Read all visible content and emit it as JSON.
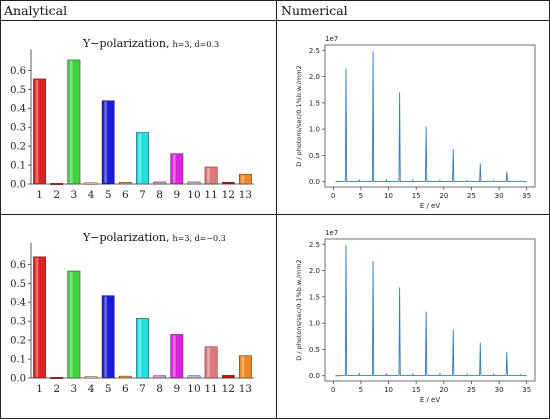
{
  "table": {
    "header_left": "Analytical",
    "header_right": "Numerical"
  },
  "chart_data": [
    {
      "type": "bar",
      "title": "Y−polarization,",
      "subtitle": "h=3, d=0.3",
      "categories": [
        "1",
        "2",
        "3",
        "4",
        "5",
        "6",
        "7",
        "8",
        "9",
        "10",
        "11",
        "12",
        "13"
      ],
      "values": [
        0.555,
        0.004,
        0.655,
        0.006,
        0.44,
        0.009,
        0.272,
        0.011,
        0.16,
        0.011,
        0.09,
        0.009,
        0.052
      ],
      "colors": [
        "#e02020",
        "#e02020",
        "#40d040",
        "#ffd000",
        "#1a1ad8",
        "#e8a040",
        "#20e0e0",
        "#e090e0",
        "#e020e0",
        "#b8b8d8",
        "#e07878",
        "#c01010",
        "#ee8822"
      ],
      "ylim": [
        0,
        0.66
      ],
      "yticks": [
        "0.0",
        "0.1",
        "0.2",
        "0.3",
        "0.4",
        "0.5",
        "0.6"
      ],
      "xlabel": "",
      "ylabel": ""
    },
    {
      "type": "line",
      "scale_label": "1e7",
      "xlabel": "E / eV",
      "ylabel": "D / photons/sec/0.1%b.w./mm2",
      "xlim": [
        -1.5,
        36.5
      ],
      "ylim": [
        -0.1,
        2.6
      ],
      "xticks": [
        "0",
        "5",
        "10",
        "15",
        "20",
        "25",
        "30",
        "35"
      ],
      "yticks": [
        "0.0",
        "0.5",
        "1.0",
        "1.5",
        "2.0",
        "2.5"
      ],
      "peaks": {
        "x": [
          2.3,
          7.2,
          12.0,
          16.8,
          21.7,
          26.6,
          31.4
        ],
        "y": [
          2.15,
          2.48,
          1.7,
          1.05,
          0.62,
          0.35,
          0.19
        ]
      },
      "small_peaks": {
        "x": [
          4.7,
          9.6,
          14.4,
          19.3,
          24.2,
          29.0,
          33.9
        ],
        "y": [
          0.04,
          0.035,
          0.03,
          0.025,
          0.02,
          0.02,
          0.015
        ]
      },
      "color": "#3a7bb8"
    },
    {
      "type": "bar",
      "title": "Y−polarization,",
      "subtitle": "h=3, d=−0.3",
      "categories": [
        "1",
        "2",
        "3",
        "4",
        "5",
        "6",
        "7",
        "8",
        "9",
        "10",
        "11",
        "12",
        "13"
      ],
      "values": [
        0.64,
        0.004,
        0.565,
        0.007,
        0.435,
        0.01,
        0.315,
        0.012,
        0.23,
        0.012,
        0.165,
        0.014,
        0.118
      ],
      "colors": [
        "#e02020",
        "#e02020",
        "#40d040",
        "#ffd000",
        "#1a1ad8",
        "#e8a040",
        "#20e0e0",
        "#e090e0",
        "#e020e0",
        "#b8b8d8",
        "#e07878",
        "#c01010",
        "#ee8822"
      ],
      "ylim": [
        0,
        0.66
      ],
      "yticks": [
        "0.0",
        "0.1",
        "0.2",
        "0.3",
        "0.4",
        "0.5",
        "0.6"
      ],
      "xlabel": "",
      "ylabel": ""
    },
    {
      "type": "line",
      "scale_label": "1e7",
      "xlabel": "E / eV",
      "ylabel": "D / photons/sec/0.1%b.w./mm2",
      "xlim": [
        -1.5,
        36.5
      ],
      "ylim": [
        -0.1,
        2.6
      ],
      "xticks": [
        "0",
        "5",
        "10",
        "15",
        "20",
        "25",
        "30",
        "35"
      ],
      "yticks": [
        "0.0",
        "0.5",
        "1.0",
        "1.5",
        "2.0",
        "2.5"
      ],
      "peaks": {
        "x": [
          2.3,
          7.2,
          12.0,
          16.8,
          21.7,
          26.6,
          31.4
        ],
        "y": [
          2.48,
          2.18,
          1.68,
          1.22,
          0.88,
          0.63,
          0.45
        ]
      },
      "small_peaks": {
        "x": [
          4.7,
          9.6,
          14.4,
          19.3,
          24.2,
          29.0,
          33.9
        ],
        "y": [
          0.05,
          0.045,
          0.04,
          0.035,
          0.03,
          0.025,
          0.02
        ]
      },
      "color": "#3a7bb8"
    }
  ]
}
